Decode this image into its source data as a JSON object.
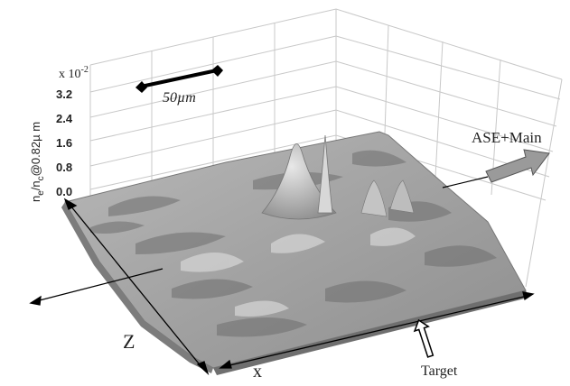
{
  "chart_data": {
    "type": "surface",
    "z_axis": {
      "label_n": "n",
      "label_n_sub": "e",
      "label_mid": "/n",
      "label_c_sub": "c",
      "label_tail": "@0.82µ m",
      "multiplier_base": "x 10",
      "multiplier_exp": "-2",
      "ticks": [
        "3.2",
        "2.4",
        "1.6",
        "0.8",
        "0.0"
      ],
      "zlim": [
        0.0,
        3.2
      ]
    },
    "x_axis": {
      "label": "x"
    },
    "depth_axis": {
      "label": "Z"
    },
    "scale_bar": {
      "label": "50µm"
    },
    "annotations": {
      "beam": "ASE+Main",
      "target": "Target"
    },
    "peaks": [
      {
        "name": "main-peak",
        "value": 2.6
      },
      {
        "name": "side-spike",
        "value": 3.0
      }
    ],
    "colors": {
      "surface": "#a9a9a9",
      "grid": "#c8c8c8",
      "arrow": "#9a9a9a"
    }
  }
}
